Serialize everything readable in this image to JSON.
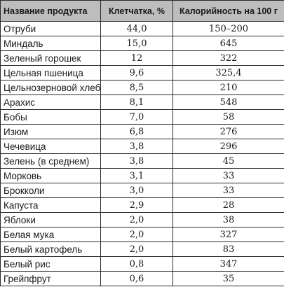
{
  "headers": [
    "Название продукта",
    "Клетчатка, %",
    "Калорийность на 100 г"
  ],
  "rows": [
    [
      "Отруби",
      "44,0",
      "150–200"
    ],
    [
      "Миндаль",
      "15,0",
      "645"
    ],
    [
      "Зеленый горошек",
      "12",
      "322"
    ],
    [
      "Цельная пшеница",
      "9,6",
      "325,4"
    ],
    [
      "Цельнозерновой хлеб",
      "8,5",
      "210"
    ],
    [
      "Арахис",
      "8,1",
      "548"
    ],
    [
      "Бобы",
      "7,0",
      "58"
    ],
    [
      "Изюм",
      "6,8",
      "276"
    ],
    [
      "Чечевица",
      "3,8",
      "296"
    ],
    [
      "Зелень (в среднем)",
      "3,8",
      "45"
    ],
    [
      "Морковь",
      "3,1",
      "33"
    ],
    [
      "Брокколи",
      "3,0",
      "33"
    ],
    [
      "Капуста",
      "2,9",
      "28"
    ],
    [
      "Яблоки",
      "2,0",
      "38"
    ],
    [
      "Белая мука",
      "2,0",
      "327"
    ],
    [
      "Белый картофель",
      "2,0",
      "83"
    ],
    [
      "Белый рис",
      "0,8",
      "347"
    ],
    [
      "Грейпфрут",
      "0,6",
      "35"
    ]
  ]
}
